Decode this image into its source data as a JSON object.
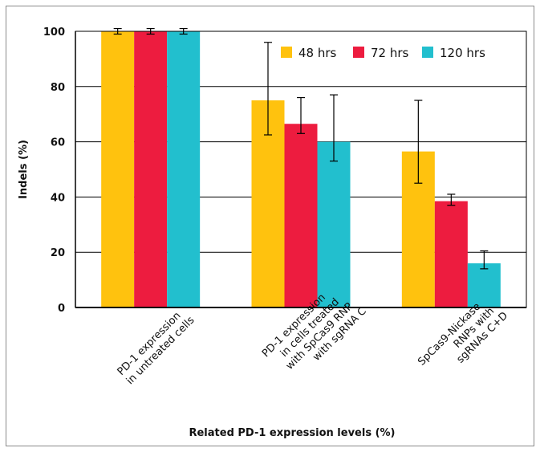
{
  "chart_data": {
    "type": "bar",
    "xlabel": "Related PD-1 expression levels (%)",
    "ylabel": "Indels (%)",
    "ylim": [
      0,
      100
    ],
    "yticks": [
      0,
      20,
      40,
      60,
      80,
      100
    ],
    "grid": true,
    "legend_position": "top-right",
    "categories": [
      [
        "PD-1 expression",
        "in untreated cells"
      ],
      [
        "PD-1 expression",
        "in cells treated",
        "with SpCas9 RNP",
        "with sgRNA C"
      ],
      [
        "SpCas9-Nickase",
        "RNPs with",
        "sgRNAs C+D"
      ]
    ],
    "series": [
      {
        "name": "48 hrs",
        "color": "#ffc20e",
        "values": [
          100,
          75,
          56.5
        ],
        "err_low": [
          99,
          62.5,
          45
        ],
        "err_high": [
          101,
          96,
          75
        ]
      },
      {
        "name": "72 hrs",
        "color": "#ed1c3f",
        "values": [
          100,
          66.5,
          38.5
        ],
        "err_low": [
          99,
          63,
          37
        ],
        "err_high": [
          101,
          76,
          41
        ]
      },
      {
        "name": "120 hrs",
        "color": "#22bfce",
        "values": [
          100,
          60,
          16
        ],
        "err_low": [
          99,
          53,
          14
        ],
        "err_high": [
          101,
          77,
          20.5
        ]
      }
    ]
  }
}
